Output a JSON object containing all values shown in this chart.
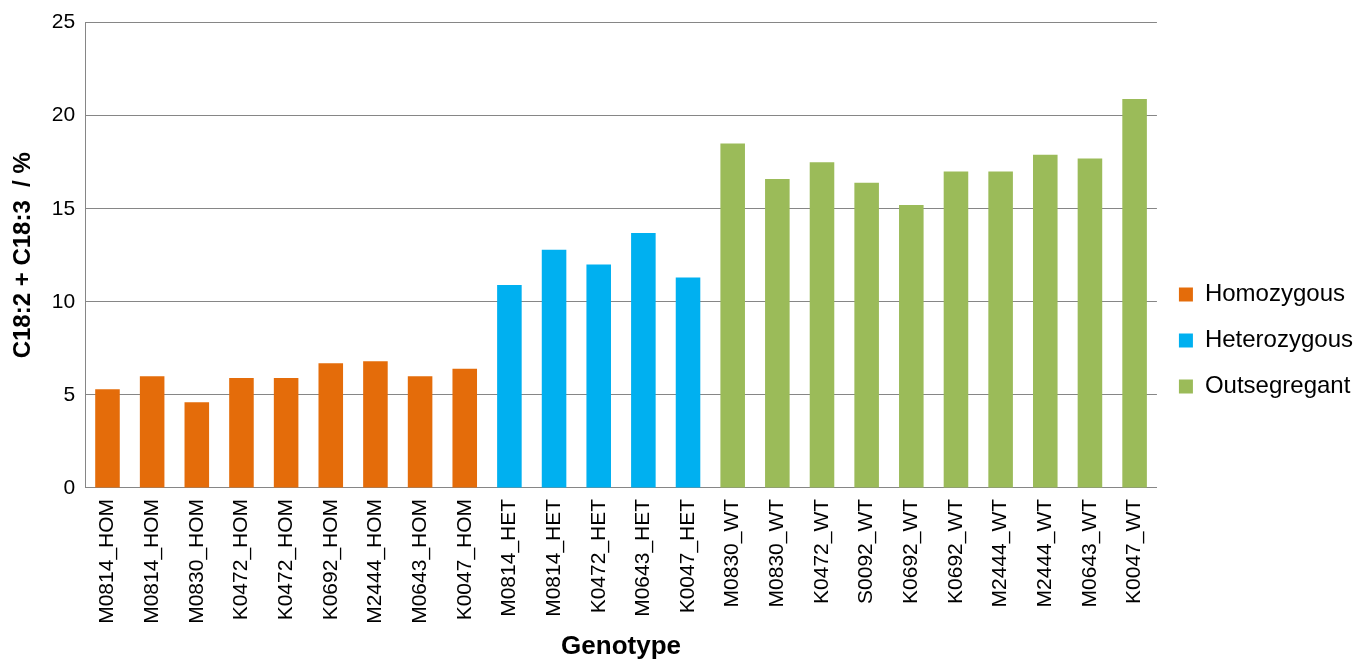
{
  "chart_data": {
    "type": "bar",
    "xlabel": "Genotype",
    "ylabel": "C18:2 + C18:3  / %",
    "categories": [
      "M0814_HOM",
      "M0814_HOM",
      "M0830_HOM",
      "K0472_HOM",
      "K0472_HOM",
      "K0692_HOM",
      "M2444_HOM",
      "M0643_HOM",
      "K0047_HOM",
      "M0814_HET",
      "M0814_HET",
      "K0472_HET",
      "M0643_HET",
      "K0047_HET",
      "M0830_WT",
      "M0830_WT",
      "K0472_WT",
      "S0092_WT",
      "K0692_WT",
      "K0692_WT",
      "M2444_WT",
      "M2444_WT",
      "M0643_WT",
      "K0047_WT"
    ],
    "series": [
      {
        "name": "Homozygous",
        "color": "#e46c0a",
        "values": [
          5.3,
          6.0,
          4.6,
          5.9,
          5.9,
          6.7,
          6.8,
          6.0,
          6.4,
          null,
          null,
          null,
          null,
          null,
          null,
          null,
          null,
          null,
          null,
          null,
          null,
          null,
          null,
          null
        ]
      },
      {
        "name": "Heterozygous",
        "color": "#00b0f0",
        "values": [
          null,
          null,
          null,
          null,
          null,
          null,
          null,
          null,
          null,
          10.9,
          12.8,
          12.0,
          13.7,
          11.3,
          null,
          null,
          null,
          null,
          null,
          null,
          null,
          null,
          null,
          null
        ]
      },
      {
        "name": "Outsegregant",
        "color": "#9bbb59",
        "values": [
          null,
          null,
          null,
          null,
          null,
          null,
          null,
          null,
          null,
          null,
          null,
          null,
          null,
          null,
          18.5,
          16.6,
          17.5,
          16.4,
          15.2,
          17.0,
          17.0,
          17.9,
          17.7,
          20.9
        ]
      }
    ],
    "ylim": [
      0,
      25
    ],
    "yticks": [
      0,
      5,
      10,
      15,
      20,
      25
    ],
    "grid": "y",
    "legend": "right"
  }
}
